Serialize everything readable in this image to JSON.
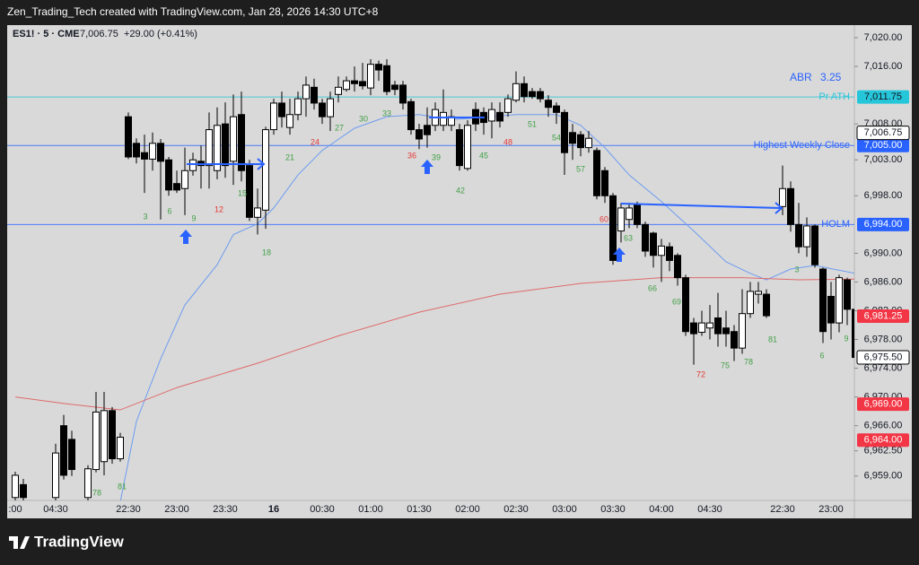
{
  "watermark": "Zen_Trading_Tech created with TradingView.com, Jan 28, 2026 14:30 UTC+8",
  "logo": "TradingView",
  "chart_data": {
    "type": "candlestick",
    "symbol": "ES1! · 5 · CME",
    "last": "7,006.75",
    "change": "+29.00 (+0.41%)",
    "abr_label": "ABR",
    "abr_value": 3.25,
    "up_color": "#ffffff",
    "down_color": "#000000",
    "ylim": [
      6955.6,
      7021.75
    ],
    "yticks": [
      {
        "value": 7020,
        "label": "7,020.00"
      },
      {
        "value": 7016,
        "label": "7,016.00"
      },
      {
        "value": 7008,
        "label": "7,008.00"
      },
      {
        "value": 7003,
        "label": "7,003.00"
      },
      {
        "value": 6998,
        "label": "6,998.00"
      },
      {
        "value": 6990,
        "label": "6,990.00"
      },
      {
        "value": 6986,
        "label": "6,986.00"
      },
      {
        "value": 6982,
        "label": "6,982.00"
      },
      {
        "value": 6978,
        "label": "6,978.00"
      },
      {
        "value": 6974,
        "label": "6,974.00"
      },
      {
        "value": 6970,
        "label": "6,970.00"
      },
      {
        "value": 6966,
        "label": "6,966.00"
      },
      {
        "value": 6962.5,
        "label": "6,962.50"
      },
      {
        "value": 6959,
        "label": "6,959.00"
      }
    ],
    "categories": [
      ":00",
      null,
      null,
      null,
      null,
      "04:30",
      null,
      null,
      null,
      null,
      null,
      null,
      null,
      null,
      "22:30",
      null,
      null,
      null,
      null,
      null,
      "23:00",
      null,
      null,
      null,
      null,
      null,
      "23:30",
      null,
      null,
      null,
      null,
      null,
      "16",
      null,
      null,
      null,
      null,
      null,
      "00:30",
      null,
      null,
      null,
      null,
      null,
      "01:00",
      null,
      null,
      null,
      null,
      null,
      "01:30",
      null,
      null,
      null,
      null,
      null,
      "02:00",
      null,
      null,
      null,
      null,
      null,
      "02:30",
      null,
      null,
      null,
      null,
      null,
      "03:00",
      null,
      null,
      null,
      null,
      null,
      "03:30",
      null,
      null,
      null,
      null,
      null,
      "04:00",
      null,
      null,
      null,
      null,
      null,
      "04:30",
      null,
      null,
      null,
      null,
      null,
      null,
      null,
      null,
      "22:30",
      null,
      null,
      null,
      null,
      null,
      "23:00",
      null,
      null,
      null
    ],
    "candles": [
      [
        6956.0,
        6959.6,
        6955.5,
        6959.1
      ],
      [
        6957.8,
        6958.6,
        6955.5,
        6956.0
      ],
      null,
      null,
      null,
      [
        6956.0,
        6963.5,
        6955.5,
        6962.2
      ],
      [
        6966.0,
        6967.5,
        6958.5,
        6959.1
      ],
      [
        6964.1,
        6965.3,
        6959.0,
        6959.9
      ],
      null,
      [
        6956.0,
        6960.5,
        6955.5,
        6960.0
      ],
      [
        6959.9,
        6970.7,
        6959.5,
        6967.9
      ],
      [
        6961.0,
        6970.7,
        6959.1,
        6968.1
      ],
      [
        6968.1,
        6968.6,
        6960.7,
        6961.4
      ],
      [
        6961.4,
        6965.0,
        6961.0,
        6964.4
      ],
      [
        7009.0,
        7009.6,
        7003.1,
        7003.4
      ],
      [
        7005.3,
        7006.0,
        7002.5,
        7003.4
      ],
      [
        7004.0,
        7006.5,
        6998.4,
        7003.1
      ],
      [
        7003.1,
        7006.8,
        7001.5,
        7005.3
      ],
      [
        7005.3,
        7005.9,
        6994.7,
        7002.8
      ],
      [
        7003.0,
        7003.4,
        6998.0,
        6998.8
      ],
      [
        6999.7,
        7001.5,
        6998.4,
        6998.8
      ],
      [
        6999.0,
        7004.7,
        6995.3,
        7001.5
      ],
      [
        7001.5,
        7004.0,
        7000.8,
        7003.0
      ],
      [
        7002.8,
        7005.0,
        6999.0,
        7002.2
      ],
      [
        7002.2,
        7009.6,
        6999.0,
        7007.2
      ],
      [
        7001.5,
        7010.3,
        7000.3,
        7007.8
      ],
      [
        7008.0,
        7011.0,
        7000.5,
        7002.2
      ],
      [
        7002.8,
        7012.1,
        6999.5,
        7009.0
      ],
      [
        7009.3,
        7012.5,
        7000.0,
        7001.5
      ],
      [
        7002.2,
        7003.0,
        6994.5,
        6995.0
      ],
      [
        6995.0,
        6999.0,
        6992.6,
        6996.3
      ],
      [
        6996.0,
        7007.6,
        6993.4,
        7007.2
      ],
      [
        7007.2,
        7011.5,
        7006.5,
        7010.9
      ],
      [
        7010.9,
        7012.5,
        7007.5,
        7009.0
      ],
      [
        7007.5,
        7011.5,
        7006.5,
        7009.3
      ],
      [
        7009.3,
        7012.5,
        7008.5,
        7011.5
      ],
      [
        7011.5,
        7014.6,
        7009.0,
        7013.4
      ],
      [
        7013.1,
        7014.3,
        7010.0,
        7010.9
      ],
      [
        7010.9,
        7011.5,
        7008.0,
        7009.0
      ],
      [
        7009.0,
        7012.5,
        7007.0,
        7011.5
      ],
      [
        7012.1,
        7014.6,
        7011.0,
        7013.1
      ],
      [
        7012.8,
        7014.6,
        7012.5,
        7014.0
      ],
      [
        7014.0,
        7016.0,
        7012.5,
        7013.6
      ],
      [
        7013.9,
        7016.5,
        7012.8,
        7013.3
      ],
      [
        7013.0,
        7017.0,
        7012.0,
        7016.3
      ],
      [
        7016.3,
        7016.8,
        7014.0,
        7015.5
      ],
      [
        7016.1,
        7017.0,
        7012.0,
        7012.5
      ],
      [
        7013.4,
        7014.0,
        7012.0,
        7012.8
      ],
      [
        7013.4,
        7014.0,
        7010.0,
        7010.9
      ],
      [
        7011.1,
        7011.5,
        7006.5,
        7007.2
      ],
      [
        7007.2,
        7008.0,
        7004.5,
        7005.9
      ],
      [
        7007.8,
        7010.3,
        7004.7,
        7006.5
      ],
      [
        7007.8,
        7011.0,
        7007.0,
        7010.0
      ],
      [
        7007.8,
        7012.8,
        7007.0,
        7009.6
      ],
      [
        7007.8,
        7010.0,
        7007.0,
        7009.0
      ],
      [
        7007.2,
        7008.0,
        7001.5,
        7002.2
      ],
      [
        7001.8,
        7008.5,
        7001.5,
        7007.8
      ],
      [
        7010.0,
        7011.0,
        7007.0,
        7008.0
      ],
      [
        7009.6,
        7010.3,
        7006.5,
        7008.2
      ],
      [
        7008.4,
        7011.0,
        7006.0,
        7010.0
      ],
      [
        7009.6,
        7011.0,
        7007.5,
        7008.4
      ],
      [
        7009.6,
        7012.1,
        7009.0,
        7011.5
      ],
      [
        7011.3,
        7015.3,
        7011.0,
        7013.6
      ],
      [
        7013.6,
        7014.6,
        7011.0,
        7011.8
      ],
      [
        7012.5,
        7013.0,
        7011.5,
        7011.8
      ],
      [
        7012.5,
        7013.0,
        7011.0,
        7011.5
      ],
      [
        7011.3,
        7012.0,
        7009.0,
        7010.3
      ],
      [
        7010.5,
        7011.0,
        7008.0,
        7009.6
      ],
      [
        7009.6,
        7010.0,
        7000.9,
        7004.0
      ],
      [
        7006.8,
        7008.0,
        7003.0,
        7005.3
      ],
      [
        7006.5,
        7007.0,
        7003.5,
        7004.7
      ],
      [
        7004.7,
        7007.0,
        7004.0,
        7006.0
      ],
      [
        7004.3,
        7004.7,
        6997.5,
        6998.0
      ],
      [
        7001.5,
        7002.0,
        6997.0,
        6998.0
      ],
      [
        6998.0,
        6998.4,
        6988.4,
        6989.0
      ],
      [
        6993.1,
        6997.0,
        6991.5,
        6996.3
      ],
      [
        6994.7,
        6997.0,
        6993.5,
        6996.3
      ],
      [
        6996.8,
        6997.2,
        6993.5,
        6994.0
      ],
      [
        6994.0,
        6994.4,
        6989.5,
        6990.3
      ],
      [
        6992.8,
        6993.0,
        6988.0,
        6989.7
      ],
      [
        6989.7,
        6992.0,
        6986.0,
        6991.0
      ],
      [
        6990.9,
        6991.5,
        6987.5,
        6989.0
      ],
      [
        6989.7,
        6990.0,
        6985.5,
        6986.6
      ],
      [
        6986.6,
        6987.0,
        6978.5,
        6979.1
      ],
      [
        6980.3,
        6981.0,
        6974.5,
        6978.8
      ],
      [
        6979.0,
        6982.0,
        6978.5,
        6980.3
      ],
      [
        6979.6,
        6982.8,
        6978.0,
        6980.3
      ],
      [
        6981.0,
        6984.5,
        6977.0,
        6978.8
      ],
      [
        6979.6,
        6982.0,
        6977.0,
        6978.8
      ],
      [
        6979.1,
        6980.0,
        6975.0,
        6976.8
      ],
      [
        6976.8,
        6985.0,
        6976.0,
        6981.6
      ],
      [
        6981.6,
        6986.0,
        6981.0,
        6984.7
      ],
      [
        6984.3,
        6986.0,
        6983.0,
        6984.7
      ],
      [
        6984.3,
        6985.0,
        6981.0,
        6981.3
      ],
      null,
      [
        6996.5,
        7002.2,
        6995.3,
        6999.0
      ],
      [
        6999.0,
        7000.0,
        6993.0,
        6994.0
      ],
      [
        6994.0,
        6997.0,
        6990.0,
        6990.9
      ],
      [
        6990.9,
        6995.0,
        6989.5,
        6993.8
      ],
      [
        6993.8,
        6994.0,
        6988.0,
        6988.4
      ],
      [
        6987.8,
        6988.0,
        6977.5,
        6979.1
      ],
      [
        6984.0,
        6986.0,
        6978.0,
        6980.3
      ],
      [
        6980.3,
        6987.0,
        6979.0,
        6986.6
      ],
      [
        6986.3,
        6986.6,
        6980.0,
        6982.2
      ],
      [
        6982.2,
        6983.0,
        6974.5,
        6975.5
      ]
    ],
    "lines": [
      {
        "color": "#6d9cf0",
        "x": [
          13,
          15,
          18,
          21,
          25,
          27,
          30,
          32,
          35,
          38,
          42,
          46,
          50,
          54,
          58,
          62,
          67,
          70,
          73,
          76,
          80,
          84,
          88,
          91,
          93,
          96,
          99,
          104
        ],
        "values": [
          6955.4,
          6966.6,
          6975.3,
          6982.8,
          6988.4,
          6992.6,
          6994.1,
          6996.3,
          7000.9,
          7004.3,
          7007.4,
          7009.0,
          7009.3,
          7008.6,
          7008.9,
          7009.3,
          7009.3,
          7007.8,
          7004.7,
          7000.9,
          6997.2,
          6993.1,
          6988.8,
          6987.2,
          6986.3,
          6987.8,
          6988.3,
          6987.2
        ]
      },
      {
        "color": "#e06a6a",
        "x": [
          0,
          6,
          13,
          20,
          30,
          40,
          50,
          60,
          70,
          80,
          90,
          97,
          104
        ],
        "values": [
          6970.0,
          6969.1,
          6968.2,
          6971.3,
          6974.7,
          6978.5,
          6981.8,
          6984.3,
          6985.8,
          6986.6,
          6986.6,
          6986.3,
          6986.4
        ]
      }
    ],
    "levels": [
      {
        "name": "Pr ATH",
        "value": 7011.75,
        "label": "7,011.75",
        "color": "#26c6da"
      },
      {
        "name": "Highest Weekly Close",
        "value": 7005,
        "label": "7,005.00",
        "color": "#2962ff"
      },
      {
        "name": "HOLM",
        "value": 6994,
        "label": "6,994.00",
        "color": "#2962ff"
      }
    ],
    "price_tags": [
      {
        "value": 7006.75,
        "label": "7,006.75",
        "color": "#ffffff"
      },
      {
        "value": 6981.25,
        "label": "6,981.25",
        "color": "#f23645"
      },
      {
        "value": 6975.5,
        "label": "6,975.50",
        "color": "#ffffff"
      },
      {
        "value": 6969,
        "label": "6,969.00",
        "color": "#f23645"
      },
      {
        "value": 6964,
        "label": "6,964.00",
        "color": "#f23645"
      }
    ],
    "bar_counts": [
      78,
      81,
      3,
      6,
      9,
      12,
      15,
      18,
      21,
      24,
      27,
      30,
      33,
      36,
      39,
      42,
      45,
      48,
      51,
      54,
      57,
      60,
      63,
      66,
      69,
      72,
      75,
      78,
      81,
      3,
      6,
      9
    ]
  }
}
